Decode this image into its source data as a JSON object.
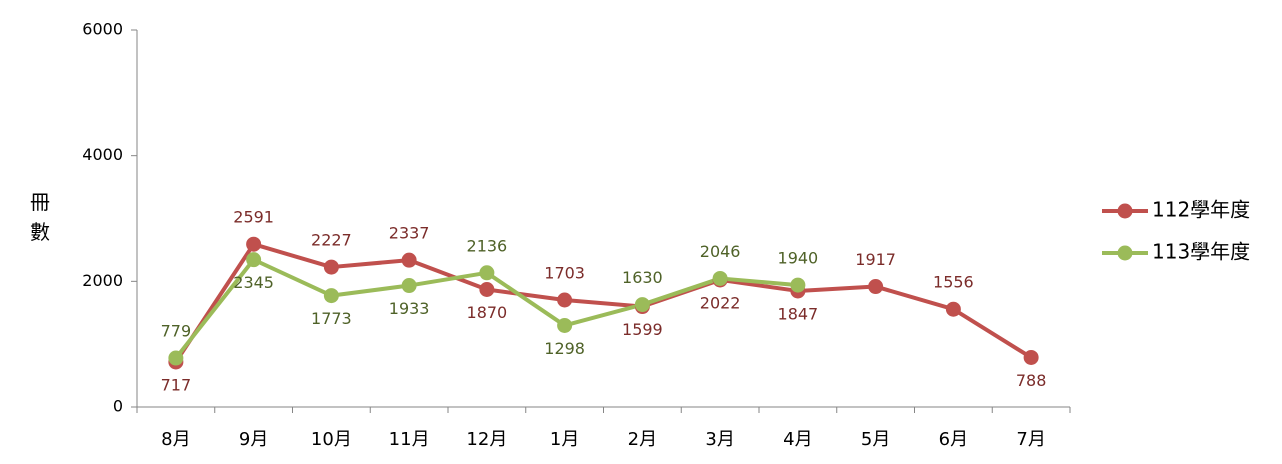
{
  "chart_data": {
    "type": "line",
    "y_label": "冊數",
    "categories": [
      "8月",
      "9月",
      "10月",
      "11月",
      "12月",
      "1月",
      "2月",
      "3月",
      "4月",
      "5月",
      "6月",
      "7月"
    ],
    "series": [
      {
        "name": "112學年度",
        "color": "#c0504d",
        "values": [
          717,
          2591,
          2227,
          2337,
          1870,
          1703,
          1599,
          2022,
          1847,
          1917,
          1556,
          788
        ]
      },
      {
        "name": "113學年度",
        "color": "#9bbb59",
        "values": [
          779,
          2345,
          1773,
          1933,
          2136,
          1298,
          1630,
          2046,
          1940,
          null,
          null,
          null
        ]
      }
    ],
    "ylim": [
      0,
      6000
    ],
    "yticks": [
      0,
      2000,
      4000,
      6000
    ],
    "grid": false,
    "legend": "right"
  }
}
